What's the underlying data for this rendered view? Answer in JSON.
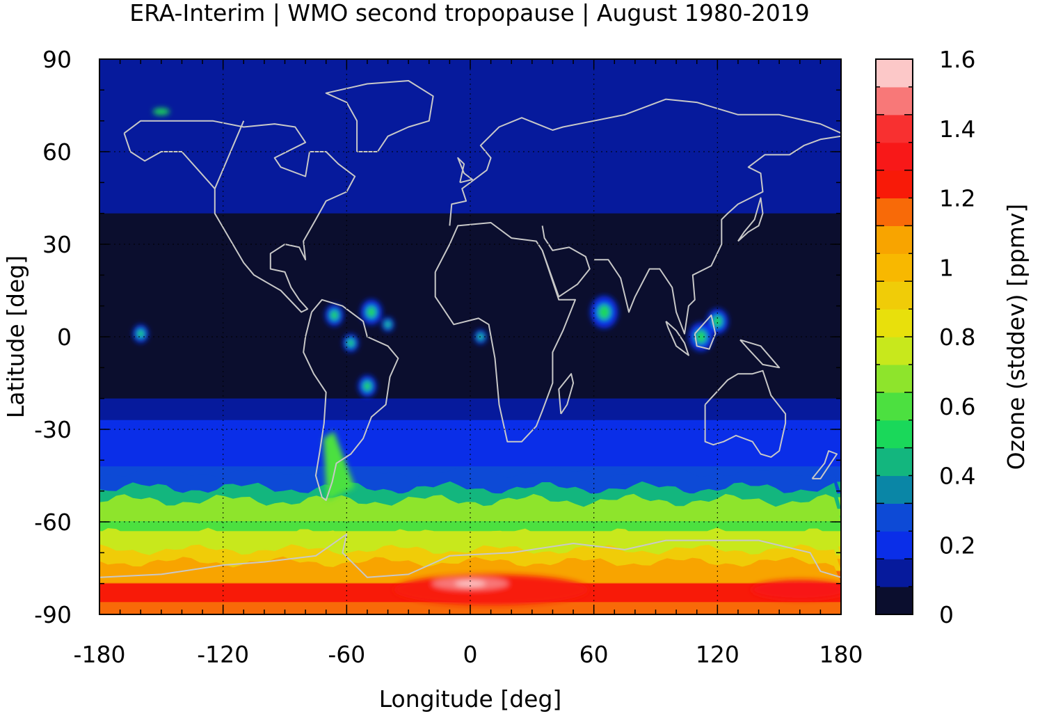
{
  "title": "ERA-Interim | WMO second tropopause | August 1980-2019",
  "map": {
    "xlabel": "Longitude [deg]",
    "ylabel": "Latitude [deg]",
    "x_ticks": [
      "-180",
      "-120",
      "-60",
      "0",
      "60",
      "120",
      "180"
    ],
    "y_ticks": [
      "90",
      "60",
      "30",
      "0",
      "-30",
      "-60",
      "-90"
    ],
    "xlim": [
      -180,
      180
    ],
    "ylim": [
      -90,
      90
    ],
    "grid": true,
    "coastlines_color": "#c8c8c8"
  },
  "colorbar": {
    "label": "Ozone (stddev) [ppmv]",
    "tick_labels": [
      "1.6",
      "1.4",
      "1.2",
      "1",
      "0.8",
      "0.6",
      "0.4",
      "0.2",
      "0"
    ],
    "range": [
      0,
      1.6
    ],
    "colors": [
      "#0b0e2e",
      "#061a9c",
      "#0a2ee8",
      "#0d4ad6",
      "#0a86a6",
      "#13b67e",
      "#1ad85a",
      "#4ce040",
      "#8ee42c",
      "#c8e81c",
      "#e8e00c",
      "#f0cc08",
      "#f8b800",
      "#f8a400",
      "#f86a08",
      "#f81a08",
      "#f81818",
      "#f83030",
      "#f87878",
      "#fcc8c8"
    ]
  }
}
